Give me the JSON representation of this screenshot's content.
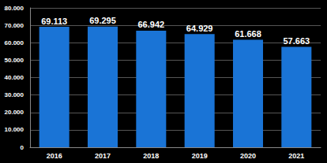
{
  "chart_data": {
    "type": "bar",
    "categories": [
      "2016",
      "2017",
      "2018",
      "2019",
      "2020",
      "2021"
    ],
    "values": [
      69113,
      69295,
      66942,
      64929,
      61668,
      57663
    ],
    "value_labels": [
      "69.113",
      "69.295",
      "66.942",
      "64.929",
      "61.668",
      "57.663"
    ],
    "data_labels": true,
    "color": "#1a74d6",
    "ylim": [
      0,
      80000
    ],
    "yticks": [
      0,
      {
        "value": 10000,
        "label": "10.000"
      },
      {
        "value": 20000,
        "label": "20.000"
      },
      {
        "value": 30000,
        "label": "30.000"
      },
      {
        "value": 40000,
        "label": "40.000"
      },
      {
        "value": 50000,
        "label": "50.000"
      },
      {
        "value": 60000,
        "label": "60.000"
      },
      {
        "value": 70000,
        "label": "70.000"
      },
      {
        "value": 80000,
        "label": "80.000"
      }
    ],
    "grid": true
  }
}
